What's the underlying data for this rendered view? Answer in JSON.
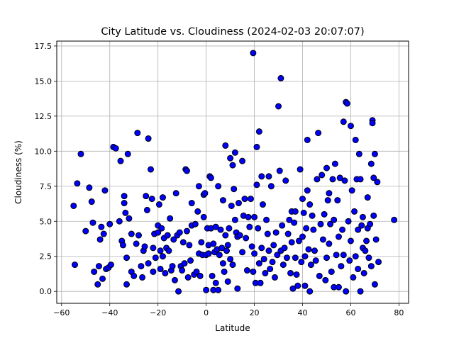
{
  "chart_data": {
    "type": "scatter",
    "title": "City Latitude vs. Cloudiness (2024-02-03 20:07:07)",
    "xlabel": "Latitude",
    "ylabel": "Cloudiness (%)",
    "xlim": [
      -62,
      84
    ],
    "ylim": [
      -0.85,
      17.85
    ],
    "xticks": [
      -60,
      -40,
      -20,
      0,
      20,
      40,
      60,
      80
    ],
    "yticks": [
      0.0,
      2.5,
      5.0,
      7.5,
      10.0,
      12.5,
      15.0,
      17.5
    ],
    "xtick_labels": [
      "−60",
      "−40",
      "−20",
      "0",
      "20",
      "40",
      "60",
      "80"
    ],
    "ytick_labels": [
      "0.0",
      "2.5",
      "5.0",
      "7.5",
      "10.0",
      "12.5",
      "15.0",
      "17.5"
    ],
    "grid": true,
    "marker_face": "#0000ff",
    "marker_edge": "#000000",
    "points": [
      [
        -55,
        6.1
      ],
      [
        -54.5,
        1.9
      ],
      [
        -53.5,
        7.7
      ],
      [
        -52,
        9.8
      ],
      [
        -50,
        4.3
      ],
      [
        -48.5,
        7.4
      ],
      [
        -47.5,
        6.4
      ],
      [
        -47,
        4.9
      ],
      [
        -46.5,
        1.4
      ],
      [
        -45,
        0.5
      ],
      [
        -44.5,
        1.8
      ],
      [
        -44,
        3.7
      ],
      [
        -43.5,
        4.6
      ],
      [
        -43,
        0.9
      ],
      [
        -42.5,
        4.1
      ],
      [
        -42,
        7.2
      ],
      [
        -41.5,
        1.6
      ],
      [
        -40.5,
        1.7
      ],
      [
        -40,
        4.8
      ],
      [
        -39.5,
        1.9
      ],
      [
        -38.5,
        10.3
      ],
      [
        -37.5,
        10.2
      ],
      [
        -36,
        5.0
      ],
      [
        -35.5,
        9.3
      ],
      [
        -35,
        3.6
      ],
      [
        -34.5,
        3.3
      ],
      [
        -34,
        6.3
      ],
      [
        -34,
        6.8
      ],
      [
        -33.5,
        5.6
      ],
      [
        -33,
        0.5
      ],
      [
        -33,
        2.4
      ],
      [
        -32.5,
        9.8
      ],
      [
        -32,
        5.2
      ],
      [
        -31,
        1.4
      ],
      [
        -31,
        4.1
      ],
      [
        -30,
        1.1
      ],
      [
        -29,
        3.4
      ],
      [
        -28.5,
        11.3
      ],
      [
        -28,
        4.0
      ],
      [
        -27,
        1.8
      ],
      [
        -26.5,
        1.0
      ],
      [
        -26,
        2.9
      ],
      [
        -25.5,
        3.2
      ],
      [
        -25,
        6.8
      ],
      [
        -24.5,
        5.8
      ],
      [
        -24,
        10.9
      ],
      [
        -24,
        2.0
      ],
      [
        -23,
        8.7
      ],
      [
        -22.5,
        6.6
      ],
      [
        -22,
        3.1
      ],
      [
        -22,
        1.4
      ],
      [
        -21.5,
        4.1
      ],
      [
        -21,
        2.4
      ],
      [
        -20,
        4.7
      ],
      [
        -20,
        4.2
      ],
      [
        -19.5,
        6.2
      ],
      [
        -19,
        1.6
      ],
      [
        -19,
        2.9
      ],
      [
        -18.5,
        4.5
      ],
      [
        -18,
        6.7
      ],
      [
        -18,
        2.5
      ],
      [
        -17.5,
        3.8
      ],
      [
        -17,
        1.3
      ],
      [
        -16.5,
        3.1
      ],
      [
        -16,
        4.0
      ],
      [
        -15.5,
        2.9
      ],
      [
        -15,
        5.2
      ],
      [
        -14.5,
        1.5
      ],
      [
        -14,
        1.8
      ],
      [
        -13.5,
        3.7
      ],
      [
        -13,
        0.8
      ],
      [
        -12.5,
        7.0
      ],
      [
        -12,
        4.0
      ],
      [
        -11.5,
        0.0
      ],
      [
        -11,
        4.2
      ],
      [
        -10.5,
        1.8
      ],
      [
        -10,
        1.5
      ],
      [
        -9.5,
        3.5
      ],
      [
        -9,
        2.0
      ],
      [
        -8.5,
        8.7
      ],
      [
        -8,
        8.6
      ],
      [
        -8,
        4.3
      ],
      [
        -7.5,
        1.0
      ],
      [
        -7,
        3.3
      ],
      [
        -6.5,
        2.2
      ],
      [
        -6,
        6.3
      ],
      [
        -6,
        4.7
      ],
      [
        -5,
        1.2
      ],
      [
        -4.5,
        4.8
      ],
      [
        -4,
        1.4
      ],
      [
        -3.5,
        5.7
      ],
      [
        -3,
        7.5
      ],
      [
        -3,
        2.7
      ],
      [
        -2.5,
        1.1
      ],
      [
        -2,
        3.5
      ],
      [
        -1.5,
        2.6
      ],
      [
        -1,
        5.3
      ],
      [
        -1,
        6.9
      ],
      [
        -0.5,
        7.0
      ],
      [
        0,
        2.6
      ],
      [
        0,
        0.1
      ],
      [
        0.5,
        4.5
      ],
      [
        1,
        3.3
      ],
      [
        1,
        2.7
      ],
      [
        1.5,
        8.2
      ],
      [
        2,
        8.1
      ],
      [
        2,
        4.5
      ],
      [
        2.5,
        1.1
      ],
      [
        3,
        3.4
      ],
      [
        3,
        0.1
      ],
      [
        3.5,
        2.8
      ],
      [
        4,
        0.6
      ],
      [
        4,
        4.6
      ],
      [
        4.5,
        3.0
      ],
      [
        5,
        7.5
      ],
      [
        5,
        0.1
      ],
      [
        5.5,
        2.6
      ],
      [
        6,
        4.4
      ],
      [
        6.5,
        3.1
      ],
      [
        7,
        2.0
      ],
      [
        7,
        6.5
      ],
      [
        7.5,
        1.4
      ],
      [
        8,
        10.4
      ],
      [
        8,
        4.0
      ],
      [
        8.5,
        2.9
      ],
      [
        9,
        0.7
      ],
      [
        9,
        3.3
      ],
      [
        9.5,
        4.5
      ],
      [
        10,
        2.3
      ],
      [
        10,
        9.5
      ],
      [
        10.5,
        6.1
      ],
      [
        11,
        9.0
      ],
      [
        11,
        1.9
      ],
      [
        11.5,
        7.3
      ],
      [
        12,
        9.9
      ],
      [
        12,
        5.1
      ],
      [
        12.5,
        4.2
      ],
      [
        13,
        0.2
      ],
      [
        13,
        3.9
      ],
      [
        13.5,
        6.3
      ],
      [
        14,
        4.0
      ],
      [
        15,
        9.3
      ],
      [
        15,
        2.8
      ],
      [
        15.5,
        5.4
      ],
      [
        16,
        6.6
      ],
      [
        16.5,
        3.8
      ],
      [
        17,
        1.5
      ],
      [
        17.5,
        5.3
      ],
      [
        18,
        4.6
      ],
      [
        18.5,
        6.6
      ],
      [
        19,
        3.2
      ],
      [
        19.5,
        1.4
      ],
      [
        19.5,
        17.0
      ],
      [
        20,
        2.7
      ],
      [
        20,
        5.3
      ],
      [
        20.5,
        0.6
      ],
      [
        21,
        7.6
      ],
      [
        21,
        10.3
      ],
      [
        21.5,
        4.5
      ],
      [
        22,
        11.4
      ],
      [
        22,
        2.0
      ],
      [
        22.5,
        0.6
      ],
      [
        23,
        3.1
      ],
      [
        23,
        8.2
      ],
      [
        23.5,
        6.2
      ],
      [
        24,
        2.3
      ],
      [
        24.5,
        1.3
      ],
      [
        25,
        5.1
      ],
      [
        25.5,
        4.1
      ],
      [
        26,
        8.2
      ],
      [
        26,
        2.9
      ],
      [
        26.5,
        1.6
      ],
      [
        27,
        7.5
      ],
      [
        27.5,
        2.1
      ],
      [
        28,
        3.3
      ],
      [
        28.5,
        1.0
      ],
      [
        29,
        4.2
      ],
      [
        29.5,
        2.6
      ],
      [
        30,
        13.2
      ],
      [
        30.5,
        8.6
      ],
      [
        31,
        15.2
      ],
      [
        31,
        2.9
      ],
      [
        31.5,
        4.7
      ],
      [
        32,
        1.9
      ],
      [
        32.5,
        3.1
      ],
      [
        33,
        7.9
      ],
      [
        33.5,
        2.4
      ],
      [
        34,
        4.1
      ],
      [
        34.5,
        5.1
      ],
      [
        35,
        1.3
      ],
      [
        35.5,
        3.5
      ],
      [
        35.5,
        5.7
      ],
      [
        36,
        0.2
      ],
      [
        36.5,
        4.9
      ],
      [
        37,
        5.7
      ],
      [
        37,
        2.4
      ],
      [
        37.5,
        1.2
      ],
      [
        38,
        0.4
      ],
      [
        38.5,
        3.6
      ],
      [
        39,
        8.7
      ],
      [
        39.5,
        2.1
      ],
      [
        40,
        6.6
      ],
      [
        40,
        3.9
      ],
      [
        40.5,
        5.6
      ],
      [
        41,
        2.5
      ],
      [
        41,
        0.4
      ],
      [
        41.5,
        4.5
      ],
      [
        42,
        10.8
      ],
      [
        42,
        7.2
      ],
      [
        42.5,
        3.0
      ],
      [
        43,
        0.0
      ],
      [
        43,
        6.2
      ],
      [
        43.5,
        1.9
      ],
      [
        44,
        5.4
      ],
      [
        44.5,
        4.4
      ],
      [
        45,
        2.9
      ],
      [
        45.5,
        2.2
      ],
      [
        46,
        8.0
      ],
      [
        46.5,
        11.3
      ],
      [
        47,
        1.1
      ],
      [
        47.5,
        4.8
      ],
      [
        48,
        8.3
      ],
      [
        48.5,
        3.7
      ],
      [
        49,
        5.5
      ],
      [
        49.5,
        0.8
      ],
      [
        50,
        8.8
      ],
      [
        50,
        2.4
      ],
      [
        50.5,
        6.5
      ],
      [
        51,
        7.0
      ],
      [
        51,
        3.4
      ],
      [
        51.5,
        4.8
      ],
      [
        52,
        1.4
      ],
      [
        52.5,
        8.0
      ],
      [
        53,
        5.1
      ],
      [
        53,
        0.3
      ],
      [
        53.5,
        9.1
      ],
      [
        54,
        2.6
      ],
      [
        54.5,
        6.5
      ],
      [
        55,
        3.9
      ],
      [
        55,
        0.3
      ],
      [
        55.5,
        8.1
      ],
      [
        56,
        1.8
      ],
      [
        56.5,
        4.4
      ],
      [
        57,
        2.6
      ],
      [
        57,
        12.1
      ],
      [
        57.5,
        7.9
      ],
      [
        58,
        13.5
      ],
      [
        58,
        0.0
      ],
      [
        58.5,
        13.4
      ],
      [
        59,
        5.0
      ],
      [
        59.5,
        2.2
      ],
      [
        60,
        11.8
      ],
      [
        60,
        3.6
      ],
      [
        60.5,
        7.2
      ],
      [
        61,
        1.0
      ],
      [
        61.5,
        5.7
      ],
      [
        62,
        10.8
      ],
      [
        62,
        2.5
      ],
      [
        62.5,
        8.0
      ],
      [
        63,
        4.4
      ],
      [
        63,
        1.6
      ],
      [
        63.5,
        9.8
      ],
      [
        64,
        8.0
      ],
      [
        64,
        0.0
      ],
      [
        64.5,
        4.7
      ],
      [
        65,
        3.1
      ],
      [
        65,
        5.3
      ],
      [
        65.5,
        1.3
      ],
      [
        66,
        2.9
      ],
      [
        66.5,
        3.6
      ],
      [
        67,
        4.5
      ],
      [
        67,
        6.7
      ],
      [
        67.5,
        2.4
      ],
      [
        68,
        4.8
      ],
      [
        68.5,
        1.8
      ],
      [
        68.5,
        9.1
      ],
      [
        69,
        12.2
      ],
      [
        69,
        12.0
      ],
      [
        69.5,
        5.4
      ],
      [
        69.5,
        8.1
      ],
      [
        70,
        9.8
      ],
      [
        70,
        0.5
      ],
      [
        70.5,
        3.7
      ],
      [
        71,
        7.8
      ],
      [
        71.5,
        2.1
      ],
      [
        78,
        5.1
      ]
    ]
  }
}
